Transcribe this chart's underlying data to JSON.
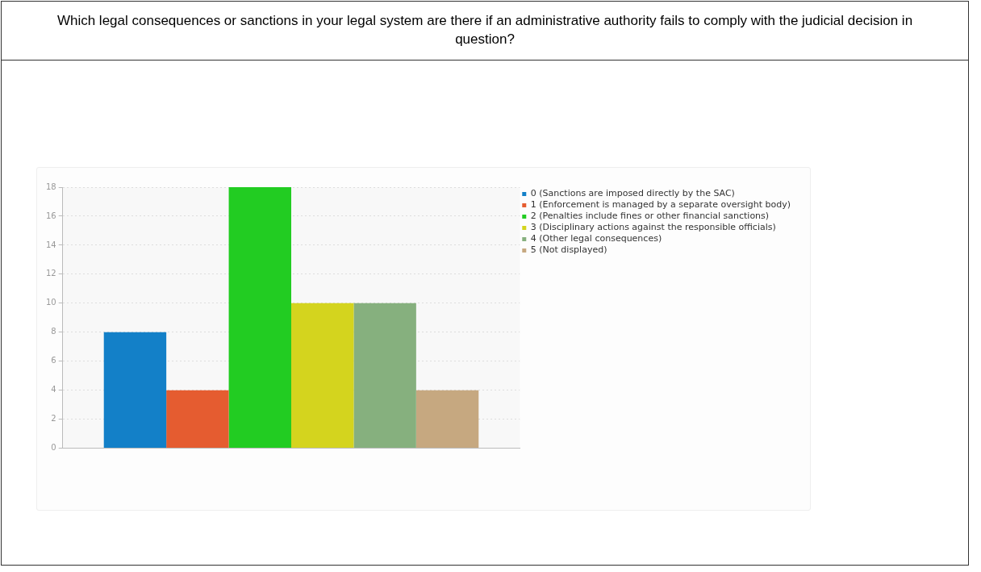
{
  "chart_data": {
    "type": "bar",
    "title": "Which legal consequences or sanctions in your legal system are there if an administrative authority fails to comply with the judicial decision in question?",
    "categories": [
      null
    ],
    "series": [
      {
        "name": "0 (Sanctions are imposed directly by the SAC)",
        "color": "#1380c8",
        "values": [
          8
        ]
      },
      {
        "name": "1 (Enforcement is managed by a separate oversight body)",
        "color": "#e55c30",
        "values": [
          4
        ]
      },
      {
        "name": "2 (Penalties include fines or other financial sanctions)",
        "color": "#22cc22",
        "values": [
          18
        ]
      },
      {
        "name": "3 (Disciplinary actions against the responsible officials)",
        "color": "#d4d41e",
        "values": [
          10
        ]
      },
      {
        "name": "4 (Other legal consequences)",
        "color": "#86b07e",
        "values": [
          10
        ]
      },
      {
        "name": "5 (Not displayed)",
        "color": "#c6a880",
        "values": [
          4
        ]
      }
    ],
    "ylim": [
      0,
      18
    ],
    "yticks": [
      0,
      2,
      4,
      6,
      8,
      10,
      12,
      14,
      16,
      18
    ],
    "grid": "y",
    "legend": "top right"
  }
}
